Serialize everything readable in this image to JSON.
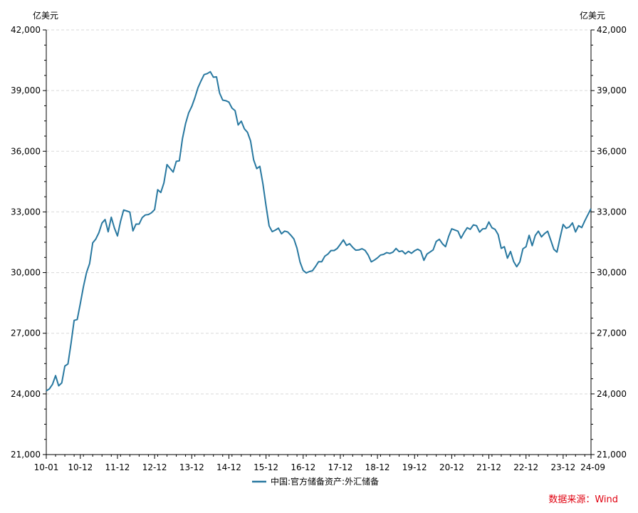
{
  "chart_data": {
    "type": "line",
    "y_unit_left": "亿美元",
    "y_unit_right": "亿美元",
    "ylim": [
      21000,
      42000
    ],
    "y_ticks": [
      21000,
      24000,
      27000,
      30000,
      33000,
      36000,
      39000,
      42000
    ],
    "y_tick_labels": [
      "21,000",
      "24,000",
      "27,000",
      "30,000",
      "33,000",
      "36,000",
      "39,000",
      "42,000"
    ],
    "x_tick_labels": [
      "10-01",
      "10-12",
      "11-12",
      "12-12",
      "13-12",
      "14-12",
      "15-12",
      "16-12",
      "17-12",
      "18-12",
      "19-12",
      "20-12",
      "21-12",
      "22-12",
      "23-12",
      "24-09"
    ],
    "x_tick_months": [
      0,
      11,
      23,
      35,
      47,
      59,
      71,
      83,
      95,
      107,
      119,
      131,
      143,
      155,
      167,
      176
    ],
    "grid": true,
    "legend_position": "bottom",
    "series": [
      {
        "name": "中国:官方储备资产:外汇储备",
        "color": "#2878a0",
        "start": "2010-01",
        "frequency": "monthly",
        "values": [
          24153,
          24248,
          24471,
          24905,
          24400,
          24543,
          25378,
          25480,
          26500,
          27636,
          27678,
          28473,
          29300,
          30000,
          30447,
          31468,
          31660,
          31975,
          32450,
          32625,
          32017,
          32738,
          32210,
          31811,
          32536,
          33095,
          33049,
          32990,
          32060,
          32400,
          32400,
          32720,
          32850,
          32870,
          32960,
          33116,
          34100,
          33960,
          34430,
          35340,
          35150,
          34970,
          35500,
          35530,
          36627,
          37367,
          37895,
          38213,
          38640,
          39137,
          39480,
          39790,
          39840,
          39932,
          39662,
          39680,
          38877,
          38529,
          38500,
          38430,
          38133,
          38010,
          37300,
          37490,
          37111,
          36938,
          36513,
          35574,
          35141,
          35255,
          34383,
          33304,
          32309,
          32023,
          32100,
          32197,
          31917,
          32052,
          32010,
          31850,
          31664,
          31207,
          30516,
          30105,
          29982,
          30051,
          30091,
          30305,
          30541,
          30536,
          30811,
          30915,
          31092,
          31090,
          31192,
          31399,
          31616,
          31345,
          31428,
          31250,
          31106,
          31121,
          31179,
          31098,
          30870,
          30531,
          30617,
          30727,
          30868,
          30901,
          30988,
          30947,
          31010,
          31192,
          31037,
          31072,
          30924,
          31051,
          30955,
          31079,
          31155,
          31068,
          30606,
          30914,
          31017,
          31123,
          31543,
          31646,
          31426,
          31280,
          31785,
          32165,
          32107,
          32050,
          31700,
          31982,
          32218,
          32140,
          32359,
          32320,
          32002,
          32161,
          32176,
          32502,
          32216,
          32138,
          31880,
          31198,
          31278,
          30713,
          31043,
          30549,
          30290,
          30524,
          31175,
          31277,
          31845,
          31331,
          31839,
          32048,
          31765,
          31930,
          32043,
          31601,
          31151,
          31012,
          31718,
          32380,
          32193,
          32258,
          32457,
          32008,
          32320,
          32224,
          32560,
          32862,
          33160
        ]
      }
    ]
  },
  "source": "数据来源：Wind"
}
